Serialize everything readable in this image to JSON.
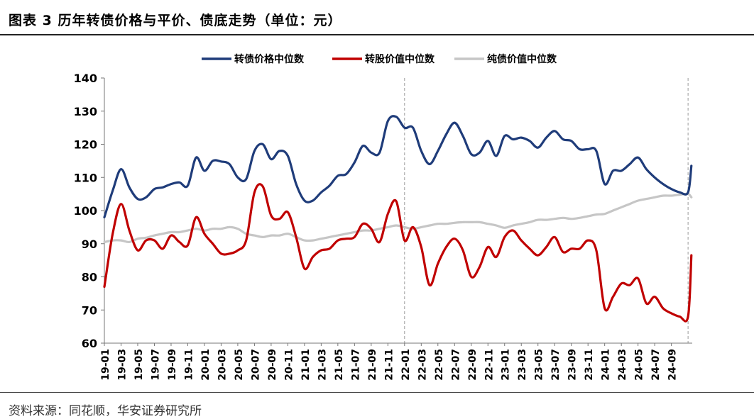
{
  "figure": {
    "title": "图表 3 历年转债价格与平价、债底走势（单位：元）",
    "source": "资料来源：同花顺，华安证券研究所"
  },
  "chart_data": {
    "type": "line",
    "ylim": [
      60,
      140
    ],
    "yticks": [
      60,
      70,
      80,
      90,
      100,
      110,
      120,
      130,
      140
    ],
    "xlabels": [
      "19-01",
      "19-03",
      "19-05",
      "19-07",
      "19-09",
      "19-11",
      "20-01",
      "20-03",
      "20-05",
      "20-07",
      "20-09",
      "20-11",
      "21-01",
      "21-03",
      "21-05",
      "21-07",
      "21-09",
      "21-11",
      "22-01",
      "22-03",
      "22-05",
      "22-07",
      "22-09",
      "22-11",
      "23-01",
      "23-03",
      "23-05",
      "23-07",
      "23-09",
      "23-11",
      "24-01",
      "24-03",
      "24-05",
      "24-07",
      "24-09"
    ],
    "xrange": [
      0,
      70.5
    ],
    "vlines": [
      36,
      70
    ],
    "legend_position": "top",
    "series": [
      {
        "name": "转债价格中位数",
        "color": "#1f3c7a",
        "points": [
          [
            0,
            98
          ],
          [
            1,
            106
          ],
          [
            2,
            112.5
          ],
          [
            3,
            107
          ],
          [
            4,
            103.5
          ],
          [
            5,
            104
          ],
          [
            6,
            106.5
          ],
          [
            7,
            107
          ],
          [
            8,
            108
          ],
          [
            9,
            108.5
          ],
          [
            10,
            107.5
          ],
          [
            11,
            116
          ],
          [
            12,
            112
          ],
          [
            13,
            115
          ],
          [
            14,
            114.8
          ],
          [
            15,
            114
          ],
          [
            16,
            110
          ],
          [
            17,
            109.5
          ],
          [
            18,
            118
          ],
          [
            19,
            120
          ],
          [
            20,
            115.5
          ],
          [
            21,
            118
          ],
          [
            22,
            116.5
          ],
          [
            23,
            108
          ],
          [
            24,
            103
          ],
          [
            25,
            103
          ],
          [
            26,
            105.5
          ],
          [
            27,
            107.5
          ],
          [
            28,
            110.5
          ],
          [
            29,
            111
          ],
          [
            30,
            114.5
          ],
          [
            31,
            119.5
          ],
          [
            32,
            117.5
          ],
          [
            33,
            117.5
          ],
          [
            34,
            127
          ],
          [
            35,
            128.3
          ],
          [
            36,
            125
          ],
          [
            37,
            125
          ],
          [
            38,
            118
          ],
          [
            39,
            114
          ],
          [
            40,
            118
          ],
          [
            41,
            123
          ],
          [
            42,
            126.5
          ],
          [
            43,
            122.5
          ],
          [
            44,
            117
          ],
          [
            45,
            117.5
          ],
          [
            46,
            121
          ],
          [
            47,
            116.5
          ],
          [
            48,
            122.5
          ],
          [
            49,
            121.5
          ],
          [
            50,
            122
          ],
          [
            51,
            121
          ],
          [
            52,
            119
          ],
          [
            53,
            122
          ],
          [
            54,
            124
          ],
          [
            55,
            121.5
          ],
          [
            56,
            121
          ],
          [
            57,
            118.5
          ],
          [
            58,
            118.5
          ],
          [
            59,
            118
          ],
          [
            60,
            108
          ],
          [
            61,
            112
          ],
          [
            62,
            112
          ],
          [
            63,
            114
          ],
          [
            64,
            116
          ],
          [
            65,
            112.5
          ],
          [
            66,
            110
          ],
          [
            67,
            108
          ],
          [
            68,
            106.5
          ],
          [
            69,
            105.5
          ],
          [
            70,
            105.5
          ],
          [
            70.4,
            113.5
          ]
        ]
      },
      {
        "name": "转股价值中位数",
        "color": "#c00000",
        "points": [
          [
            0,
            77
          ],
          [
            1,
            93
          ],
          [
            2,
            102
          ],
          [
            3,
            94
          ],
          [
            4,
            88
          ],
          [
            5,
            91
          ],
          [
            6,
            91
          ],
          [
            7,
            88.5
          ],
          [
            8,
            92.5
          ],
          [
            9,
            90.5
          ],
          [
            10,
            89.5
          ],
          [
            11,
            98
          ],
          [
            12,
            93
          ],
          [
            13,
            90
          ],
          [
            14,
            87
          ],
          [
            15,
            87
          ],
          [
            16,
            88
          ],
          [
            17,
            91
          ],
          [
            18,
            105.5
          ],
          [
            19,
            107.3
          ],
          [
            20,
            98.5
          ],
          [
            21,
            97.5
          ],
          [
            22,
            99.5
          ],
          [
            23,
            92
          ],
          [
            24,
            82.5
          ],
          [
            25,
            86
          ],
          [
            26,
            88
          ],
          [
            27,
            88.5
          ],
          [
            28,
            91
          ],
          [
            29,
            91.5
          ],
          [
            30,
            92
          ],
          [
            31,
            96
          ],
          [
            32,
            94.5
          ],
          [
            33,
            90.5
          ],
          [
            34,
            99
          ],
          [
            35,
            102.8
          ],
          [
            36,
            91
          ],
          [
            37,
            95
          ],
          [
            38,
            89
          ],
          [
            39,
            77.5
          ],
          [
            40,
            84
          ],
          [
            41,
            89
          ],
          [
            42,
            91.5
          ],
          [
            43,
            88
          ],
          [
            44,
            80
          ],
          [
            45,
            83
          ],
          [
            46,
            89
          ],
          [
            47,
            86
          ],
          [
            48,
            92
          ],
          [
            49,
            94
          ],
          [
            50,
            91
          ],
          [
            51,
            88.5
          ],
          [
            52,
            86.5
          ],
          [
            53,
            89
          ],
          [
            54,
            92
          ],
          [
            55,
            87.5
          ],
          [
            56,
            88.5
          ],
          [
            57,
            88.5
          ],
          [
            58,
            91
          ],
          [
            59,
            88
          ],
          [
            60,
            70.5
          ],
          [
            61,
            74
          ],
          [
            62,
            78
          ],
          [
            63,
            77.5
          ],
          [
            64,
            79.5
          ],
          [
            65,
            72
          ],
          [
            66,
            74
          ],
          [
            67,
            70.5
          ],
          [
            68,
            69
          ],
          [
            69,
            68
          ],
          [
            70,
            68
          ],
          [
            70.4,
            86.5
          ]
        ]
      },
      {
        "name": "纯债价值中位数",
        "color": "#c6c6c6",
        "points": [
          [
            0,
            90.5
          ],
          [
            1,
            91
          ],
          [
            2,
            91
          ],
          [
            3,
            90.5
          ],
          [
            4,
            91.5
          ],
          [
            5,
            91.8
          ],
          [
            6,
            92.5
          ],
          [
            7,
            93
          ],
          [
            8,
            93.5
          ],
          [
            9,
            93.5
          ],
          [
            10,
            94
          ],
          [
            11,
            94.5
          ],
          [
            12,
            94
          ],
          [
            13,
            94.5
          ],
          [
            14,
            94.5
          ],
          [
            15,
            95
          ],
          [
            16,
            94.5
          ],
          [
            17,
            93
          ],
          [
            18,
            92.5
          ],
          [
            19,
            92
          ],
          [
            20,
            92.5
          ],
          [
            21,
            92.5
          ],
          [
            22,
            93
          ],
          [
            23,
            92
          ],
          [
            24,
            91
          ],
          [
            25,
            91
          ],
          [
            26,
            91.5
          ],
          [
            27,
            92
          ],
          [
            28,
            92.5
          ],
          [
            29,
            93
          ],
          [
            30,
            93.5
          ],
          [
            31,
            94
          ],
          [
            32,
            94
          ],
          [
            33,
            94.5
          ],
          [
            34,
            95
          ],
          [
            35,
            95.5
          ],
          [
            36,
            95
          ],
          [
            37,
            94.5
          ],
          [
            38,
            95
          ],
          [
            39,
            95.5
          ],
          [
            40,
            96
          ],
          [
            41,
            96
          ],
          [
            42,
            96.3
          ],
          [
            43,
            96.5
          ],
          [
            44,
            96.5
          ],
          [
            45,
            96.5
          ],
          [
            46,
            96
          ],
          [
            47,
            95.5
          ],
          [
            48,
            94.8
          ],
          [
            49,
            95.5
          ],
          [
            50,
            96
          ],
          [
            51,
            96.5
          ],
          [
            52,
            97.2
          ],
          [
            53,
            97.2
          ],
          [
            54,
            97.5
          ],
          [
            55,
            97.8
          ],
          [
            56,
            97.5
          ],
          [
            57,
            97.8
          ],
          [
            58,
            98.3
          ],
          [
            59,
            98.8
          ],
          [
            60,
            99
          ],
          [
            61,
            100
          ],
          [
            62,
            101
          ],
          [
            63,
            102
          ],
          [
            64,
            103
          ],
          [
            65,
            103.5
          ],
          [
            66,
            104
          ],
          [
            67,
            104.5
          ],
          [
            68,
            104.5
          ],
          [
            69,
            104.8
          ],
          [
            70,
            105
          ],
          [
            70.4,
            104
          ]
        ]
      }
    ]
  }
}
